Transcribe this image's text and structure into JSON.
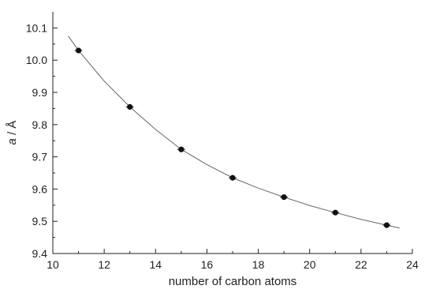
{
  "chart_data": {
    "type": "scatter",
    "title": "",
    "xlabel": "number of carbon atoms",
    "ylabel_italic": "a",
    "ylabel_rest": " / Å",
    "xlim": [
      10,
      24
    ],
    "ylim": [
      9.4,
      10.15
    ],
    "x_ticks": [
      10,
      12,
      14,
      16,
      18,
      20,
      22,
      24
    ],
    "y_ticks": [
      9.4,
      9.5,
      9.6,
      9.7,
      9.8,
      9.9,
      10.0,
      10.1
    ],
    "x_tick_labels": [
      "10",
      "12",
      "14",
      "16",
      "18",
      "20",
      "22",
      "24"
    ],
    "y_tick_labels": [
      "9.4",
      "9.5",
      "9.6",
      "9.7",
      "9.8",
      "9.9",
      "10.0",
      "10.1"
    ],
    "series": [
      {
        "x": [
          11,
          13,
          15,
          17,
          19,
          21,
          23
        ],
        "y": [
          10.03,
          9.855,
          9.723,
          9.635,
          9.575,
          9.527,
          9.488
        ],
        "x_err": [
          0.15,
          0.15,
          0.15,
          0.15,
          0.15,
          0.15,
          0.15
        ]
      }
    ],
    "fit_curve": {
      "x": [
        10.6,
        11,
        12,
        13,
        14,
        15,
        16,
        17,
        18,
        19,
        20,
        21,
        22,
        23,
        23.5
      ],
      "y": [
        10.075,
        10.03,
        9.935,
        9.855,
        9.785,
        9.723,
        9.676,
        9.635,
        9.603,
        9.575,
        9.549,
        9.527,
        9.506,
        9.488,
        9.479
      ]
    },
    "grid": false,
    "legend": "none"
  }
}
